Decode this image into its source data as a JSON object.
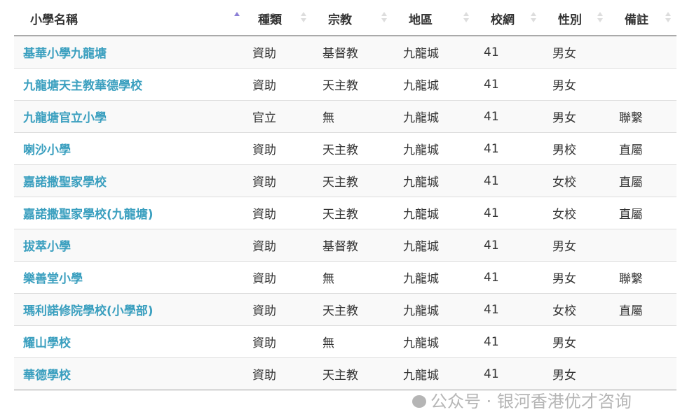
{
  "columns": [
    {
      "label": "小學名稱",
      "sort": "ascending"
    },
    {
      "label": "種類",
      "sort": "none"
    },
    {
      "label": "宗教",
      "sort": "none"
    },
    {
      "label": "地區",
      "sort": "none"
    },
    {
      "label": "校網",
      "sort": "none"
    },
    {
      "label": "性別",
      "sort": "none"
    },
    {
      "label": "備註",
      "sort": "none"
    }
  ],
  "rows": [
    [
      "基華小學九龍塘",
      "資助",
      "基督教",
      "九龍城",
      "41",
      "男女",
      ""
    ],
    [
      "九龍塘天主教華德學校",
      "資助",
      "天主教",
      "九龍城",
      "41",
      "男女",
      ""
    ],
    [
      "九龍塘官立小學",
      "官立",
      "無",
      "九龍城",
      "41",
      "男女",
      "聯繫"
    ],
    [
      "喇沙小學",
      "資助",
      "天主教",
      "九龍城",
      "41",
      "男校",
      "直屬"
    ],
    [
      "嘉諾撒聖家學校",
      "資助",
      "天主教",
      "九龍城",
      "41",
      "女校",
      "直屬"
    ],
    [
      "嘉諾撒聖家學校(九龍塘)",
      "資助",
      "天主教",
      "九龍城",
      "41",
      "女校",
      "直屬"
    ],
    [
      "拔萃小學",
      "資助",
      "基督教",
      "九龍城",
      "41",
      "男女",
      ""
    ],
    [
      "樂善堂小學",
      "資助",
      "無",
      "九龍城",
      "41",
      "男女",
      "聯繫"
    ],
    [
      "瑪利諾修院學校(小學部)",
      "資助",
      "天主教",
      "九龍城",
      "41",
      "女校",
      "直屬"
    ],
    [
      "耀山學校",
      "資助",
      "無",
      "九龍城",
      "41",
      "男女",
      ""
    ],
    [
      "華德學校",
      "資助",
      "天主教",
      "九龍城",
      "41",
      "男女",
      ""
    ]
  ],
  "watermark": {
    "text": "公众号 · 银河香港优才咨询",
    "icon": "wechat-icon"
  },
  "colors": {
    "link": "#3a9fbf",
    "sort_active": "#8b7fd6"
  }
}
